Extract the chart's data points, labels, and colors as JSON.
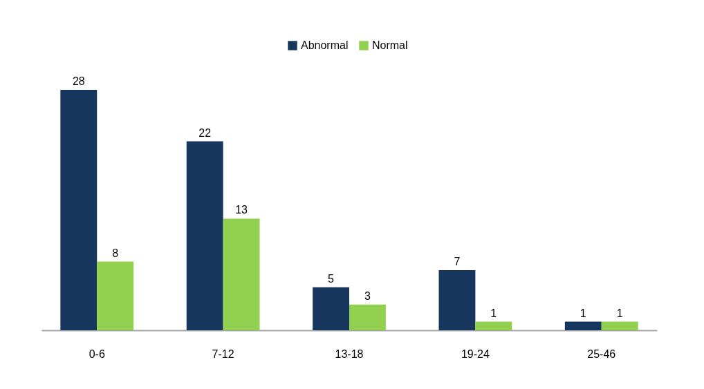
{
  "chart_data": {
    "type": "bar",
    "categories": [
      "0-6",
      "7-12",
      "13-18",
      "19-24",
      "25-46"
    ],
    "series": [
      {
        "name": "Abnormal",
        "color": "#17375e",
        "values": [
          28,
          22,
          5,
          7,
          1
        ]
      },
      {
        "name": "Normal",
        "color": "#92d050",
        "values": [
          8,
          13,
          3,
          1,
          1
        ]
      }
    ],
    "data_labels": true,
    "legend": "top",
    "tick_labels": "x"
  }
}
